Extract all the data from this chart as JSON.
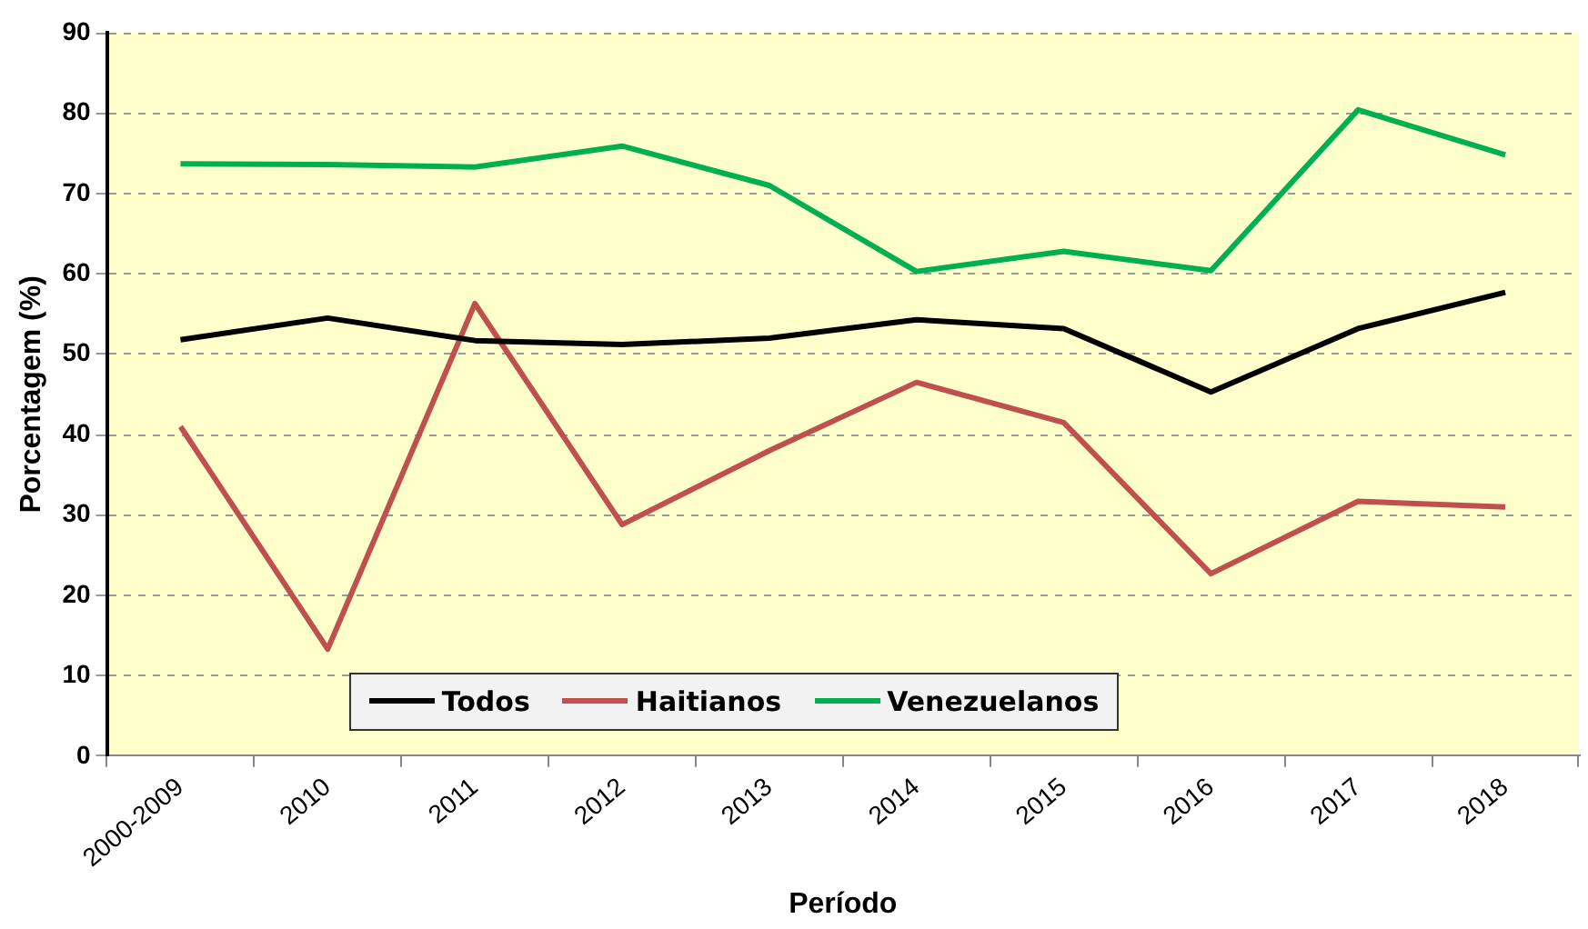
{
  "chart_data": {
    "type": "line",
    "xlabel": "Período",
    "ylabel": "Porcentagem (%)",
    "categories": [
      "2000-2009",
      "2010",
      "2011",
      "2012",
      "2013",
      "2014",
      "2015",
      "2016",
      "2017",
      "2018"
    ],
    "series": [
      {
        "name": "Todos",
        "color": "#000000",
        "values": [
          51.8,
          54.5,
          51.7,
          51.2,
          52,
          54.3,
          53.2,
          45.3,
          53.2,
          57.7
        ]
      },
      {
        "name": "Haitianos",
        "color": "#c0504d",
        "values": [
          41,
          13.3,
          56.3,
          28.8,
          38,
          46.5,
          41.5,
          22.7,
          31.7,
          31
        ]
      },
      {
        "name": "Venezuelanos",
        "color": "#00b050",
        "values": [
          73.7,
          73.6,
          73.3,
          75.9,
          71,
          60.3,
          62.8,
          60.4,
          80.4,
          74.8
        ]
      }
    ],
    "ylim": [
      0,
      90
    ],
    "yticks": [
      0,
      10,
      20,
      30,
      40,
      50,
      60,
      70,
      80,
      90
    ],
    "grid": "y",
    "legend": "bottom",
    "marker": "none",
    "line_style": "solid"
  }
}
